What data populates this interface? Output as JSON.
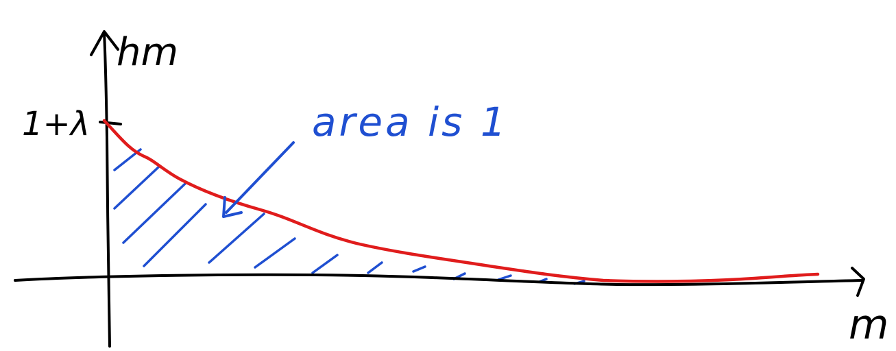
{
  "diagram": {
    "y_axis_label": "hm",
    "x_axis_label": "m",
    "y_tick_label": "1+λ",
    "annotation": "area is 1"
  },
  "colors": {
    "axes": "#000000",
    "curve": "#e01c1c",
    "hatch": "#1f4fd1",
    "annotation": "#1f4fd1",
    "background": "#ffffff"
  }
}
